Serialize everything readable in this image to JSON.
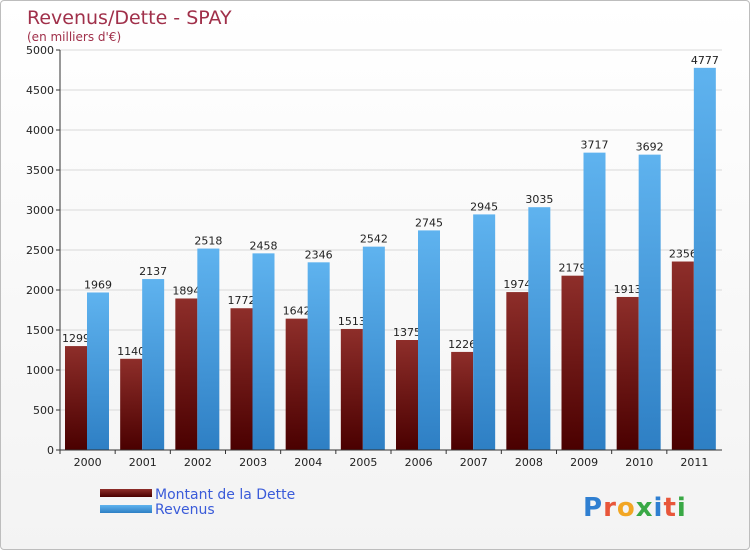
{
  "chart_data": {
    "type": "bar",
    "title": "Revenus/Dette - SPAY",
    "subtitle": "(en milliers d'€)",
    "categories": [
      "2000",
      "2001",
      "2002",
      "2003",
      "2004",
      "2005",
      "2006",
      "2007",
      "2008",
      "2009",
      "2010",
      "2011"
    ],
    "series": [
      {
        "name": "Montant de la Dette",
        "color": "#7a1d1d",
        "values": [
          1299,
          1140,
          1894,
          1772,
          1642,
          1513,
          1375,
          1226,
          1974,
          2179,
          1913,
          2356
        ]
      },
      {
        "name": "Revenus",
        "color": "#4ea5e6",
        "values": [
          1969,
          2137,
          2518,
          2458,
          2346,
          2542,
          2745,
          2945,
          3035,
          3717,
          3692,
          4777
        ]
      }
    ],
    "ylim": [
      0,
      5000
    ],
    "yticks": [
      0,
      500,
      1000,
      1500,
      2000,
      2500,
      3000,
      3500,
      4000,
      4500,
      5000
    ],
    "grid": "horizontal",
    "legend_position": "bottom-left"
  },
  "logo": {
    "text": "Proxiti",
    "letters": [
      "P",
      "r",
      "o",
      "x",
      "i",
      "t",
      "i"
    ],
    "colors": [
      "#2f7fd1",
      "#e8563a",
      "#f2a623",
      "#39a845",
      "#2f7fd1",
      "#e8563a",
      "#39a845"
    ]
  }
}
